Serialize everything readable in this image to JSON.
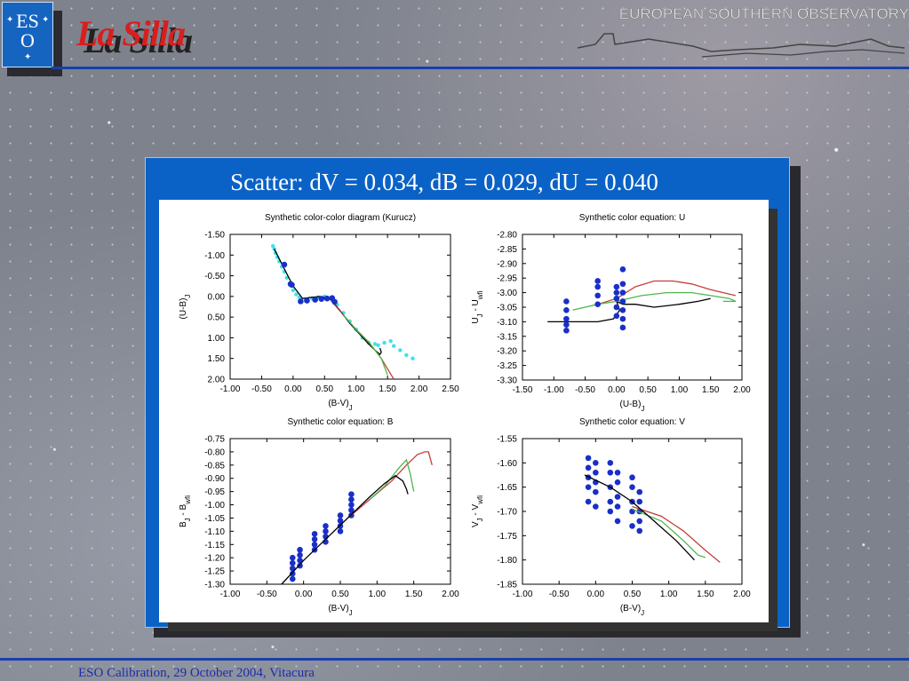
{
  "header": {
    "org": "EUROPEAN SOUTHERN OBSERVATORY",
    "logo": [
      "ES",
      "O"
    ],
    "site": "La Silla"
  },
  "slide_title": "Scatter: dV = 0.034, dB = 0.029, dU = 0.040",
  "footer": "ESO Calibration, 29 October 2004, Vitacura",
  "chart_data": [
    {
      "type": "scatter",
      "title": "Synthetic color-color diagram (Kurucz)",
      "xlabel": [
        "(B-V)",
        "J"
      ],
      "ylabel": [
        "(U-B)",
        "J"
      ],
      "xlim": [
        -1.0,
        2.5
      ],
      "ylim": [
        2.0,
        -1.5
      ],
      "xticks": [
        {
          "value": -1.0,
          "label": "-1.00"
        },
        {
          "value": -0.5,
          "label": "-0.50"
        },
        {
          "value": 0,
          "label": "0.00"
        },
        {
          "value": 0.5,
          "label": "0.50"
        },
        {
          "value": 1.0,
          "label": "1.00"
        },
        {
          "value": 1.5,
          "label": "1.50"
        },
        {
          "value": 2.0,
          "label": "2.00"
        },
        {
          "value": 2.5,
          "label": "2.50"
        }
      ],
      "yticks": [
        {
          "value": -1.5,
          "label": "-1.50"
        },
        {
          "value": -1.0,
          "label": "-1.00"
        },
        {
          "value": -0.5,
          "label": "-0.50"
        },
        {
          "value": 0,
          "label": "0.00"
        },
        {
          "value": 0.5,
          "label": "0.50"
        },
        {
          "value": 1.0,
          "label": "1.00"
        },
        {
          "value": 1.5,
          "label": "1.50"
        },
        {
          "value": 2.0,
          "label": "2.00"
        }
      ],
      "series": [
        {
          "color": "#40e0ea",
          "mode": "markers",
          "x": [
            -0.32,
            -0.3,
            -0.28,
            -0.25,
            -0.22,
            -0.18,
            -0.14,
            -0.1,
            -0.05,
            0.0,
            0.05,
            0.1,
            0.2,
            0.3,
            0.4,
            0.5,
            0.6,
            0.7,
            0.8,
            0.9,
            1.0,
            1.1,
            1.2,
            1.3,
            1.35,
            1.45,
            1.55,
            1.6,
            1.7,
            1.8,
            1.9
          ],
          "values": [
            -1.22,
            -1.15,
            -1.05,
            -0.95,
            -0.85,
            -0.72,
            -0.6,
            -0.45,
            -0.3,
            -0.15,
            -0.05,
            0.02,
            0.1,
            0.05,
            0.02,
            0.0,
            0.05,
            0.2,
            0.4,
            0.6,
            0.8,
            1.0,
            1.12,
            1.15,
            1.18,
            1.12,
            1.08,
            1.2,
            1.3,
            1.42,
            1.5
          ]
        },
        {
          "color": "#000000",
          "mode": "line",
          "x": [
            -0.3,
            -0.15,
            0.0,
            0.15,
            0.3,
            0.45,
            0.6,
            0.75,
            0.9,
            1.05,
            1.2,
            1.3,
            1.38,
            1.4,
            1.38
          ],
          "values": [
            -1.15,
            -0.7,
            -0.25,
            0.05,
            0.02,
            0.0,
            0.08,
            0.35,
            0.65,
            0.9,
            1.15,
            1.3,
            1.4,
            1.35,
            1.25
          ]
        },
        {
          "color": "#c83c3c",
          "mode": "line",
          "x": [
            0.6,
            0.8,
            1.0,
            1.2,
            1.4,
            1.5,
            1.6
          ],
          "values": [
            0.1,
            0.45,
            0.8,
            1.1,
            1.5,
            1.75,
            2.0
          ]
        },
        {
          "color": "#4cb84c",
          "mode": "line",
          "x": [
            0.8,
            1.0,
            1.2,
            1.4,
            1.5
          ],
          "values": [
            0.45,
            0.8,
            1.1,
            1.5,
            1.9
          ]
        },
        {
          "color": "#1a2fc8",
          "mode": "markers",
          "x": [
            -0.14,
            -0.04,
            -0.02,
            0.12,
            0.22,
            0.35,
            0.45,
            0.54,
            0.62,
            0.66
          ],
          "values": [
            -0.77,
            -0.3,
            -0.28,
            0.12,
            0.1,
            0.08,
            0.06,
            0.05,
            0.04,
            0.13
          ]
        }
      ]
    },
    {
      "type": "scatter",
      "title": "Synthetic color equation: U",
      "xlabel": [
        "(U-B)",
        "J"
      ],
      "ylabel": [
        "U",
        "J",
        " - U",
        "wfi"
      ],
      "xlim": [
        -1.5,
        2.0
      ],
      "ylim": [
        -3.3,
        -2.8
      ],
      "xticks": [
        {
          "value": -1.5,
          "label": "-1.50"
        },
        {
          "value": -1.0,
          "label": "-1.00"
        },
        {
          "value": -0.5,
          "label": "-0.50"
        },
        {
          "value": 0,
          "label": "0.00"
        },
        {
          "value": 0.5,
          "label": "0.50"
        },
        {
          "value": 1.0,
          "label": "1.00"
        },
        {
          "value": 1.5,
          "label": "1.50"
        },
        {
          "value": 2.0,
          "label": "2.00"
        }
      ],
      "yticks": [
        {
          "value": -2.8,
          "label": "-2.80"
        },
        {
          "value": -2.85,
          "label": "-2.85"
        },
        {
          "value": -2.9,
          "label": "-2.90"
        },
        {
          "value": -2.95,
          "label": "-2.95"
        },
        {
          "value": -3.0,
          "label": "-3.00"
        },
        {
          "value": -3.05,
          "label": "-3.05"
        },
        {
          "value": -3.1,
          "label": "-3.10"
        },
        {
          "value": -3.15,
          "label": "-3.15"
        },
        {
          "value": -3.2,
          "label": "-3.20"
        },
        {
          "value": -3.25,
          "label": "-3.25"
        },
        {
          "value": -3.3,
          "label": "-3.30"
        }
      ],
      "series": [
        {
          "color": "#000000",
          "mode": "line",
          "x": [
            -1.1,
            -0.7,
            -0.3,
            -0.05,
            0.05,
            0.0,
            0.1,
            0.3,
            0.6,
            1.0,
            1.3,
            1.5
          ],
          "values": [
            -3.1,
            -3.1,
            -3.1,
            -3.09,
            -3.06,
            -3.03,
            -3.04,
            -3.04,
            -3.05,
            -3.04,
            -3.03,
            -3.02
          ]
        },
        {
          "color": "#c83c3c",
          "mode": "line",
          "x": [
            -0.3,
            0.0,
            0.3,
            0.6,
            0.9,
            1.2,
            1.5,
            1.9
          ],
          "values": [
            -3.04,
            -3.02,
            -2.98,
            -2.96,
            -2.96,
            -2.97,
            -2.99,
            -3.01
          ]
        },
        {
          "color": "#4cb84c",
          "mode": "line",
          "x": [
            -0.7,
            -0.3,
            0.0,
            0.4,
            0.8,
            1.2,
            1.5,
            1.8,
            1.9,
            1.7
          ],
          "values": [
            -3.06,
            -3.04,
            -3.03,
            -3.01,
            -3.0,
            -3.0,
            -3.01,
            -3.02,
            -3.03,
            -3.03
          ]
        },
        {
          "color": "#1a2fc8",
          "mode": "markers",
          "x": [
            -0.8,
            -0.8,
            -0.8,
            -0.8,
            -0.8,
            -0.3,
            -0.3,
            -0.3,
            -0.3,
            0.0,
            0.0,
            0.0,
            0.0,
            0.0,
            0.1,
            0.1,
            0.1,
            0.1,
            0.1,
            0.1,
            0.1
          ],
          "values": [
            -3.03,
            -3.06,
            -3.09,
            -3.11,
            -3.13,
            -2.96,
            -2.98,
            -3.01,
            -3.04,
            -2.98,
            -3.0,
            -3.02,
            -3.05,
            -3.08,
            -2.92,
            -2.97,
            -3.0,
            -3.03,
            -3.06,
            -3.09,
            -3.12
          ]
        }
      ]
    },
    {
      "type": "scatter",
      "title": "Synthetic color equation: B",
      "xlabel": [
        "(B-V)",
        "J"
      ],
      "ylabel": [
        "B",
        "J",
        " - B",
        "wfi"
      ],
      "xlim": [
        -1.0,
        2.0
      ],
      "ylim": [
        -1.3,
        -0.75
      ],
      "xticks": [
        {
          "value": -1.0,
          "label": "-1.00"
        },
        {
          "value": -0.5,
          "label": "-0.50"
        },
        {
          "value": 0,
          "label": "0.00"
        },
        {
          "value": 0.5,
          "label": "0.50"
        },
        {
          "value": 1.0,
          "label": "1.00"
        },
        {
          "value": 1.5,
          "label": "1.50"
        },
        {
          "value": 2.0,
          "label": "2.00"
        }
      ],
      "yticks": [
        {
          "value": -0.75,
          "label": "-0.75"
        },
        {
          "value": -0.8,
          "label": "-0.80"
        },
        {
          "value": -0.85,
          "label": "-0.85"
        },
        {
          "value": -0.9,
          "label": "-0.90"
        },
        {
          "value": -0.95,
          "label": "-0.95"
        },
        {
          "value": -1.0,
          "label": "-1.00"
        },
        {
          "value": -1.05,
          "label": "-1.05"
        },
        {
          "value": -1.1,
          "label": "-1.10"
        },
        {
          "value": -1.15,
          "label": "-1.15"
        },
        {
          "value": -1.2,
          "label": "-1.20"
        },
        {
          "value": -1.25,
          "label": "-1.25"
        },
        {
          "value": -1.3,
          "label": "-1.30"
        }
      ],
      "series": [
        {
          "color": "#1a2fc8",
          "mode": "markers",
          "x": [
            -0.15,
            -0.15,
            -0.15,
            -0.15,
            -0.15,
            -0.05,
            -0.05,
            -0.05,
            -0.05,
            0.15,
            0.15,
            0.15,
            0.15,
            0.3,
            0.3,
            0.3,
            0.3,
            0.5,
            0.5,
            0.5,
            0.5,
            0.65,
            0.65,
            0.65,
            0.65,
            0.65
          ],
          "values": [
            -1.2,
            -1.22,
            -1.24,
            -1.26,
            -1.28,
            -1.17,
            -1.19,
            -1.21,
            -1.23,
            -1.11,
            -1.13,
            -1.15,
            -1.17,
            -1.08,
            -1.1,
            -1.12,
            -1.14,
            -1.04,
            -1.06,
            -1.08,
            -1.1,
            -0.96,
            -0.98,
            -1.0,
            -1.02,
            -1.04
          ]
        },
        {
          "color": "#c83c3c",
          "mode": "line",
          "x": [
            0.6,
            0.9,
            1.2,
            1.4,
            1.55,
            1.65,
            1.7,
            1.75
          ],
          "values": [
            -1.05,
            -0.98,
            -0.91,
            -0.85,
            -0.81,
            -0.8,
            -0.8,
            -0.85
          ]
        },
        {
          "color": "#4cb84c",
          "mode": "line",
          "x": [
            0.9,
            1.1,
            1.3,
            1.4,
            1.45,
            1.5
          ],
          "values": [
            -0.98,
            -0.93,
            -0.86,
            -0.83,
            -0.88,
            -0.95
          ]
        },
        {
          "color": "#000000",
          "mode": "line",
          "x": [
            -0.3,
            0.0,
            0.3,
            0.6,
            0.9,
            1.1,
            1.25,
            1.35,
            1.4,
            1.42
          ],
          "values": [
            -1.3,
            -1.21,
            -1.13,
            -1.05,
            -0.97,
            -0.92,
            -0.89,
            -0.91,
            -0.94,
            -0.96
          ]
        }
      ]
    },
    {
      "type": "scatter",
      "title": "Synthetic color equation: V",
      "xlabel": [
        "(B-V)",
        "J"
      ],
      "ylabel": [
        "V",
        "J",
        " - V",
        "wfi"
      ],
      "xlim": [
        -1.0,
        2.0
      ],
      "ylim": [
        -1.85,
        -1.55
      ],
      "xticks": [
        {
          "value": -1.0,
          "label": "-1.00"
        },
        {
          "value": -0.5,
          "label": "-0.50"
        },
        {
          "value": 0,
          "label": "0.00"
        },
        {
          "value": 0.5,
          "label": "0.50"
        },
        {
          "value": 1.0,
          "label": "1.00"
        },
        {
          "value": 1.5,
          "label": "1.50"
        },
        {
          "value": 2.0,
          "label": "2.00"
        }
      ],
      "yticks": [
        {
          "value": -1.55,
          "label": "-1.55"
        },
        {
          "value": -1.6,
          "label": "-1.60"
        },
        {
          "value": -1.65,
          "label": "-1.65"
        },
        {
          "value": -1.7,
          "label": "-1.70"
        },
        {
          "value": -1.75,
          "label": "-1.75"
        },
        {
          "value": -1.8,
          "label": "-1.80"
        },
        {
          "value": -1.85,
          "label": "-1.85"
        }
      ],
      "series": [
        {
          "color": "#1a2fc8",
          "mode": "markers",
          "x": [
            -0.1,
            -0.1,
            -0.1,
            -0.1,
            -0.1,
            0.0,
            0.0,
            0.0,
            0.0,
            0.0,
            0.2,
            0.2,
            0.2,
            0.2,
            0.2,
            0.3,
            0.3,
            0.3,
            0.3,
            0.3,
            0.5,
            0.5,
            0.5,
            0.5,
            0.5,
            0.6,
            0.6,
            0.6,
            0.6,
            0.6
          ],
          "values": [
            -1.59,
            -1.61,
            -1.63,
            -1.65,
            -1.68,
            -1.6,
            -1.62,
            -1.64,
            -1.66,
            -1.69,
            -1.6,
            -1.62,
            -1.65,
            -1.68,
            -1.7,
            -1.62,
            -1.64,
            -1.67,
            -1.69,
            -1.72,
            -1.63,
            -1.65,
            -1.68,
            -1.7,
            -1.73,
            -1.66,
            -1.68,
            -1.7,
            -1.72,
            -1.74
          ]
        },
        {
          "color": "#c83c3c",
          "mode": "line",
          "x": [
            0.5,
            0.9,
            1.2,
            1.5,
            1.7
          ],
          "values": [
            -1.69,
            -1.71,
            -1.74,
            -1.78,
            -1.805
          ]
        },
        {
          "color": "#4cb84c",
          "mode": "line",
          "x": [
            0.5,
            0.9,
            1.2,
            1.4,
            1.5
          ],
          "values": [
            -1.695,
            -1.72,
            -1.76,
            -1.79,
            -1.795
          ]
        },
        {
          "color": "#000000",
          "mode": "line",
          "x": [
            -0.15,
            0.2,
            0.5,
            0.8,
            1.1,
            1.35
          ],
          "values": [
            -1.625,
            -1.65,
            -1.68,
            -1.72,
            -1.76,
            -1.8
          ]
        }
      ]
    }
  ]
}
